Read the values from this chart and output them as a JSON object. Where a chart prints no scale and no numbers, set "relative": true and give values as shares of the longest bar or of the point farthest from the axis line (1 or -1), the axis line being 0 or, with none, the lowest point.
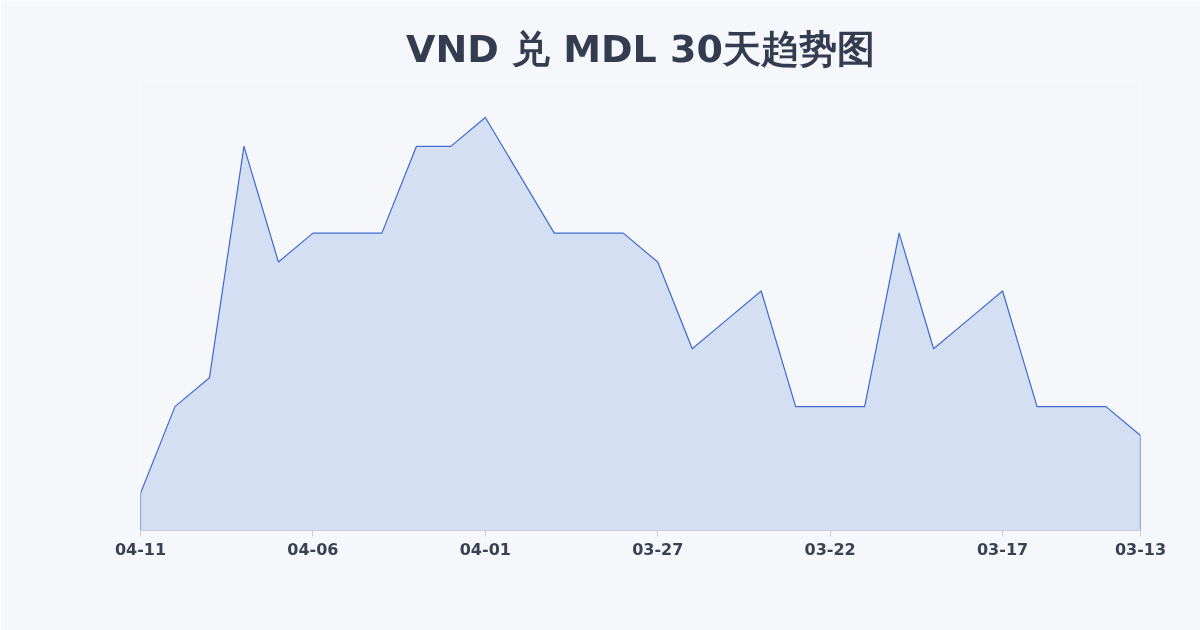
{
  "chart_data": {
    "type": "area",
    "title": "VND 兑 MDL 30天趋势图",
    "relative": true,
    "categories": [
      "04-11",
      null,
      null,
      null,
      null,
      "04-06",
      null,
      null,
      null,
      null,
      "04-01",
      null,
      null,
      null,
      null,
      "03-27",
      null,
      null,
      null,
      null,
      "03-22",
      null,
      null,
      null,
      null,
      "03-17",
      null,
      null,
      null,
      "03-13"
    ],
    "series": [
      {
        "color": "#3d6bcf",
        "values": [
          0.09,
          0.3,
          0.37,
          0.93,
          0.65,
          0.72,
          0.72,
          0.72,
          0.93,
          0.93,
          1.0,
          0.86,
          0.72,
          0.72,
          0.72,
          0.65,
          0.44,
          0.51,
          0.58,
          0.3,
          0.3,
          0.3,
          0.72,
          0.44,
          0.51,
          0.58,
          0.3,
          0.3,
          0.3,
          0.23
        ]
      }
    ]
  }
}
